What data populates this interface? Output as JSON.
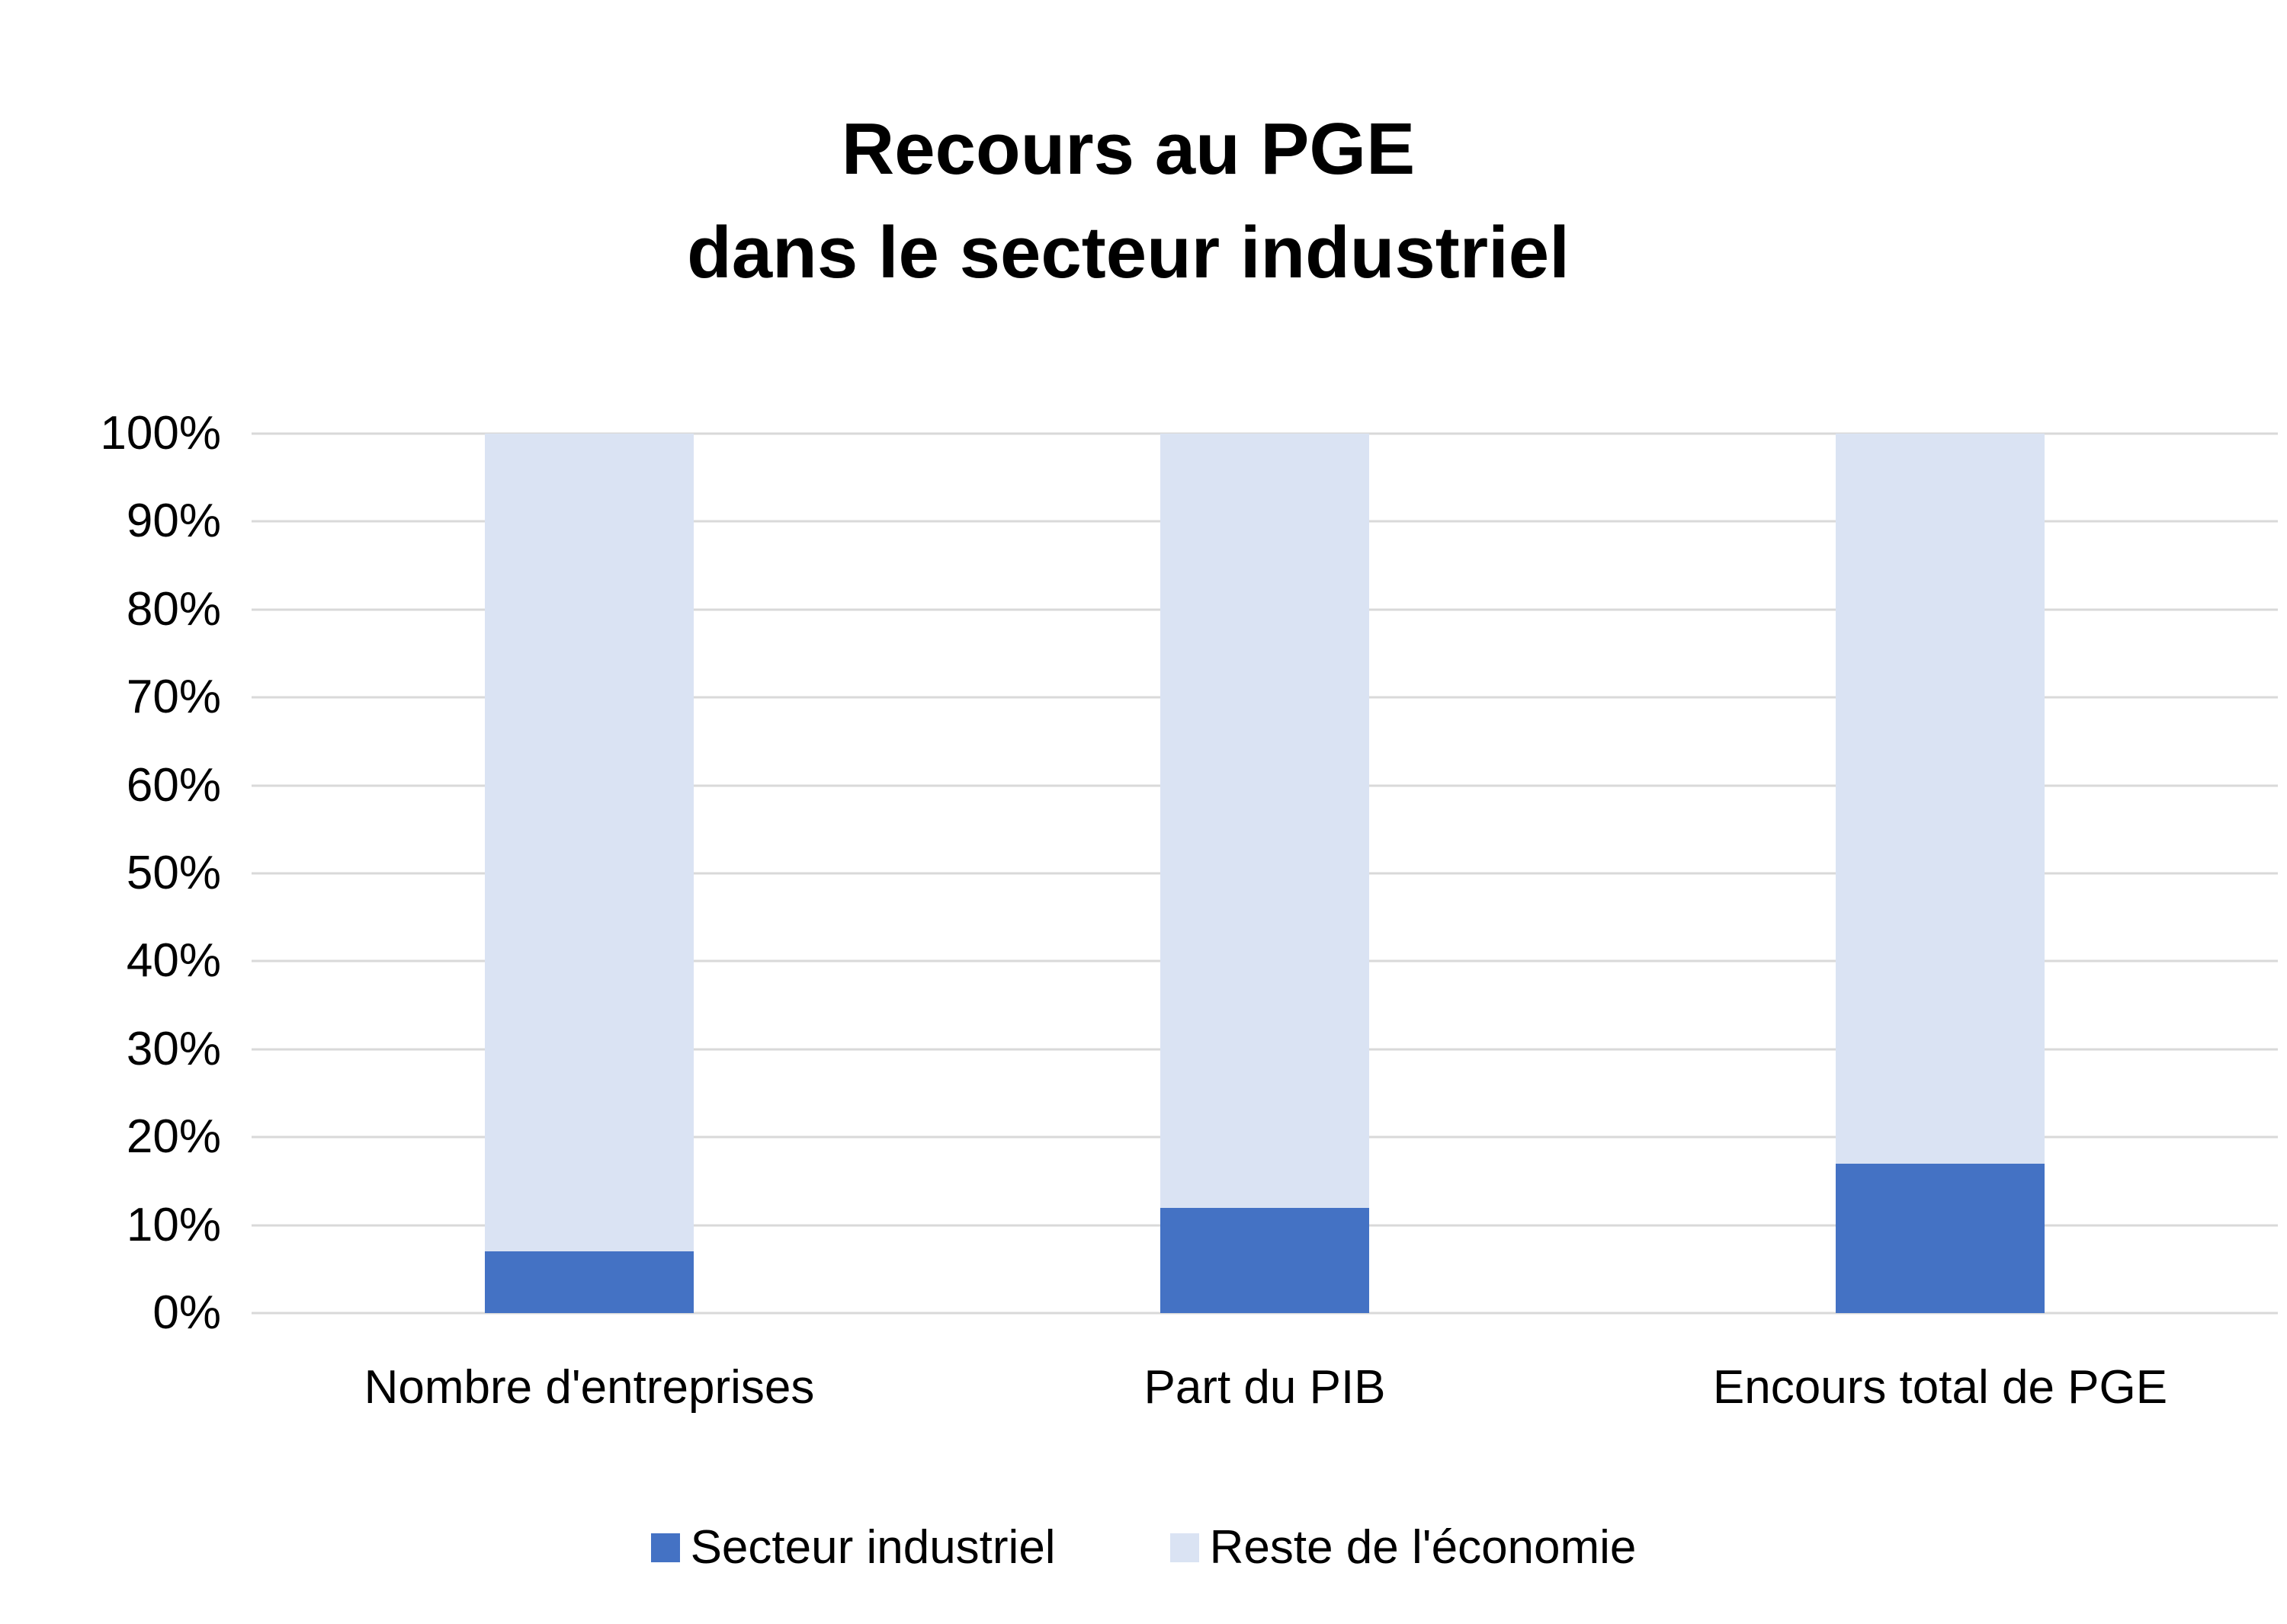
{
  "chart": {
    "title_lines": [
      "Recours au PGE",
      "dans le secteur industriel"
    ]
  },
  "chart_data": {
    "type": "bar",
    "stacked": true,
    "percent_stacked": true,
    "title": "Recours au PGE dans le secteur industriel",
    "categories": [
      "Nombre d'entreprises",
      "Part du PIB",
      "Encours total de PGE"
    ],
    "series": [
      {
        "name": "Secteur industriel",
        "color": "#4472C4",
        "values": [
          7,
          12,
          17
        ]
      },
      {
        "name": "Reste de l'économie",
        "color": "#DAE3F3",
        "values": [
          93,
          88,
          83
        ]
      }
    ],
    "xlabel": "",
    "ylabel": "",
    "ylim": [
      0,
      100
    ],
    "ytick_step": 10,
    "yticks": [
      "0%",
      "10%",
      "20%",
      "30%",
      "40%",
      "50%",
      "60%",
      "70%",
      "80%",
      "90%",
      "100%"
    ],
    "grid": true,
    "grid_color": "#D9D9D9",
    "legend_position": "bottom",
    "legend_labels": [
      "Secteur industriel",
      "Reste de l'économie"
    ]
  }
}
